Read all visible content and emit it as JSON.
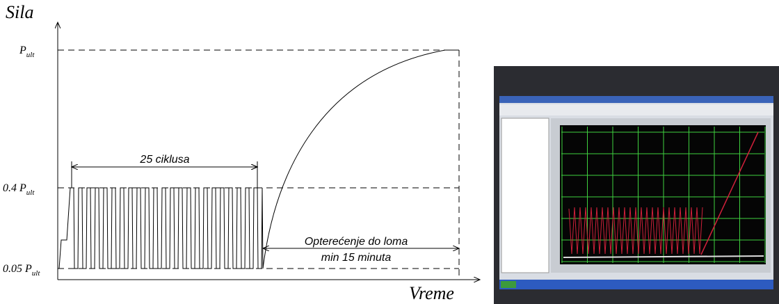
{
  "diagram": {
    "y_axis_label": "Sila",
    "x_axis_label": "Vreme",
    "levels": [
      {
        "main": "P",
        "sub": "ult"
      },
      {
        "main": "0.4 P",
        "sub": "ult"
      },
      {
        "main": "0.05 P",
        "sub": "ult"
      }
    ],
    "cycles_label": "25 ciklusa",
    "annotation": [
      "Opterećenje do loma",
      "min 15 minuta"
    ]
  }
}
